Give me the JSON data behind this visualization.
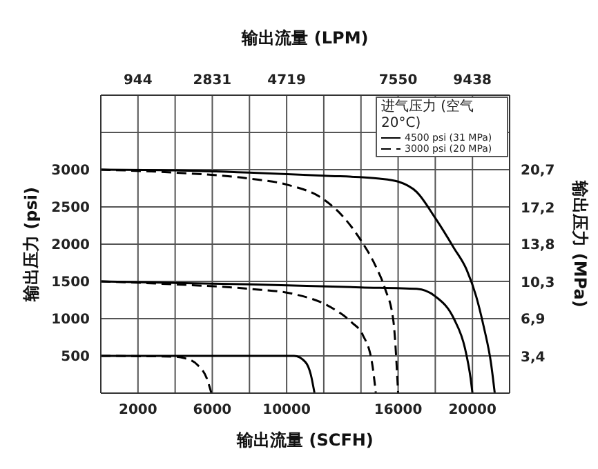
{
  "chart_data": {
    "type": "line",
    "xlabel": "输出流量 (SCFH)",
    "x2label": "输出流量 (LPM)",
    "ylabel": "输出压力 (psi)",
    "y2label": "输出压力 (MPa)",
    "legend_title": "进气压力 (空气 20°C)",
    "xlim": [
      0,
      22000
    ],
    "xticks": [
      {
        "value": 2000,
        "label": "2000"
      },
      {
        "value": 4000,
        "label": null
      },
      {
        "value": 6000,
        "label": "6000"
      },
      {
        "value": 8000,
        "label": null
      },
      {
        "value": 10000,
        "label": "10000"
      },
      {
        "value": 12000,
        "label": null
      },
      {
        "value": 14000,
        "label": null
      },
      {
        "value": 16000,
        "label": "16000"
      },
      {
        "value": 18000,
        "label": null
      },
      {
        "value": 20000,
        "label": "20000"
      }
    ],
    "x2lim": [
      0,
      10382
    ],
    "x2ticks": [
      944,
      2831,
      4719,
      7550,
      9438
    ],
    "ylim": [
      0,
      4000
    ],
    "yticks": [
      500,
      1000,
      1500,
      2000,
      2500,
      3000,
      {
        "value": 3500,
        "label": null
      }
    ],
    "y2lim": [
      0,
      27.6
    ],
    "y2ticks": [
      {
        "value": 3.4,
        "label": "3,4"
      },
      {
        "value": 6.9,
        "label": "6,9"
      },
      {
        "value": 10.3,
        "label": "10,3"
      },
      {
        "value": 13.8,
        "label": "13,8"
      },
      {
        "value": 17.2,
        "label": "17,2"
      },
      {
        "value": 20.7,
        "label": "20,7"
      }
    ],
    "grid": true,
    "legend": "top right",
    "marker": "none",
    "series": [
      {
        "name": "4500 psi (31 MPa)",
        "color": "#000000",
        "line_style": "solid",
        "x": [
          0,
          4000,
          8000,
          12000,
          15000,
          16000,
          17000,
          18000,
          19000,
          19700,
          20200,
          20600,
          21000,
          21200
        ],
        "values": [
          3000,
          2990,
          2960,
          2920,
          2880,
          2840,
          2700,
          2350,
          1950,
          1650,
          1300,
          900,
          400,
          0
        ]
      },
      {
        "name": "3000 psi (20 MPa)",
        "color": "#000000",
        "line_style": "dashed",
        "x": [
          0,
          4000,
          8000,
          10000,
          12000,
          13000,
          14000,
          14800,
          15300,
          15750,
          16000
        ],
        "values": [
          3000,
          2960,
          2880,
          2800,
          2600,
          2380,
          2050,
          1700,
          1400,
          960,
          0
        ]
      },
      {
        "color": "#000000",
        "line_style": "solid",
        "x": [
          0,
          8000,
          14000,
          17000,
          18000,
          19000,
          19600,
          19900,
          20000
        ],
        "values": [
          1500,
          1460,
          1420,
          1400,
          1300,
          1000,
          600,
          200,
          0
        ]
      },
      {
        "color": "#000000",
        "line_style": "dashed",
        "x": [
          0,
          4000,
          8000,
          10400,
          12400,
          13500,
          14100,
          14600,
          14800
        ],
        "values": [
          1500,
          1460,
          1400,
          1330,
          1150,
          950,
          780,
          400,
          0
        ]
      },
      {
        "color": "#000000",
        "line_style": "solid",
        "x": [
          0,
          10400,
          11000,
          11300,
          11500
        ],
        "values": [
          500,
          500,
          420,
          250,
          0
        ]
      },
      {
        "color": "#000000",
        "line_style": "dashed",
        "x": [
          0,
          4000,
          4500,
          5200,
          5700,
          5950
        ],
        "values": [
          500,
          490,
          470,
          380,
          200,
          0
        ]
      }
    ]
  }
}
